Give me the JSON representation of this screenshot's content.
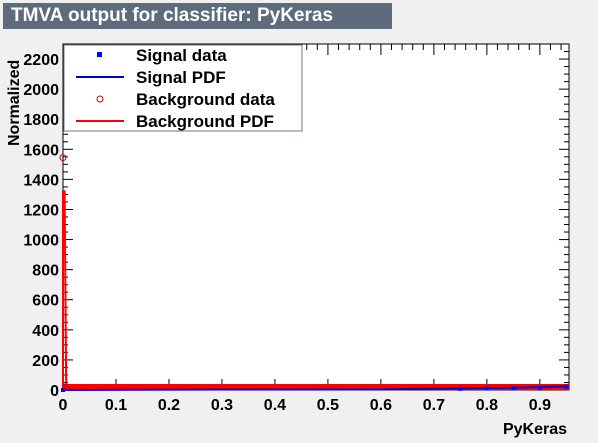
{
  "chart_data": {
    "type": "scatter",
    "title": "TMVA output for classifier: PyKeras",
    "xlabel": "PyKeras",
    "ylabel": "Normalized",
    "xlim": [
      0,
      0.955
    ],
    "ylim": [
      0,
      2300
    ],
    "xticks": [
      "0",
      "0.1",
      "0.2",
      "0.3",
      "0.4",
      "0.5",
      "0.6",
      "0.7",
      "0.8",
      "0.9"
    ],
    "yticks": [
      "0",
      "200",
      "400",
      "600",
      "800",
      "1000",
      "1200",
      "1400",
      "1600",
      "1800",
      "2000",
      "2200"
    ],
    "legend": {
      "placement": "top-left",
      "entries": [
        {
          "label": "Signal data",
          "style": "marker",
          "color": "#0000ff"
        },
        {
          "label": "Signal PDF",
          "style": "line",
          "color": "#0000cc"
        },
        {
          "label": "Background data",
          "style": "open-marker",
          "color": "#cc0000"
        },
        {
          "label": "Background PDF",
          "style": "line",
          "color": "#ff0000"
        }
      ]
    },
    "series": [
      {
        "name": "Signal data",
        "x": [
          0.0,
          0.75,
          0.8,
          0.85,
          0.9,
          0.95
        ],
        "y": [
          0,
          8,
          10,
          12,
          14,
          22
        ],
        "color": "#0000ff"
      },
      {
        "name": "Signal PDF",
        "x": [
          0.0,
          0.3,
          0.6,
          0.75,
          0.85,
          0.955
        ],
        "y": [
          0,
          3,
          5,
          10,
          15,
          25
        ],
        "color": "#0000cc"
      },
      {
        "name": "Background data",
        "x": [
          0.0,
          0.005
        ],
        "y": [
          1545,
          20
        ],
        "color": "#cc0000"
      },
      {
        "name": "Background PDF",
        "x": [
          0.0,
          0.003,
          0.006,
          0.2,
          0.5,
          0.8,
          0.955
        ],
        "y": [
          1320,
          1320,
          8,
          6,
          6,
          6,
          6
        ],
        "color": "#ff0000"
      }
    ]
  }
}
